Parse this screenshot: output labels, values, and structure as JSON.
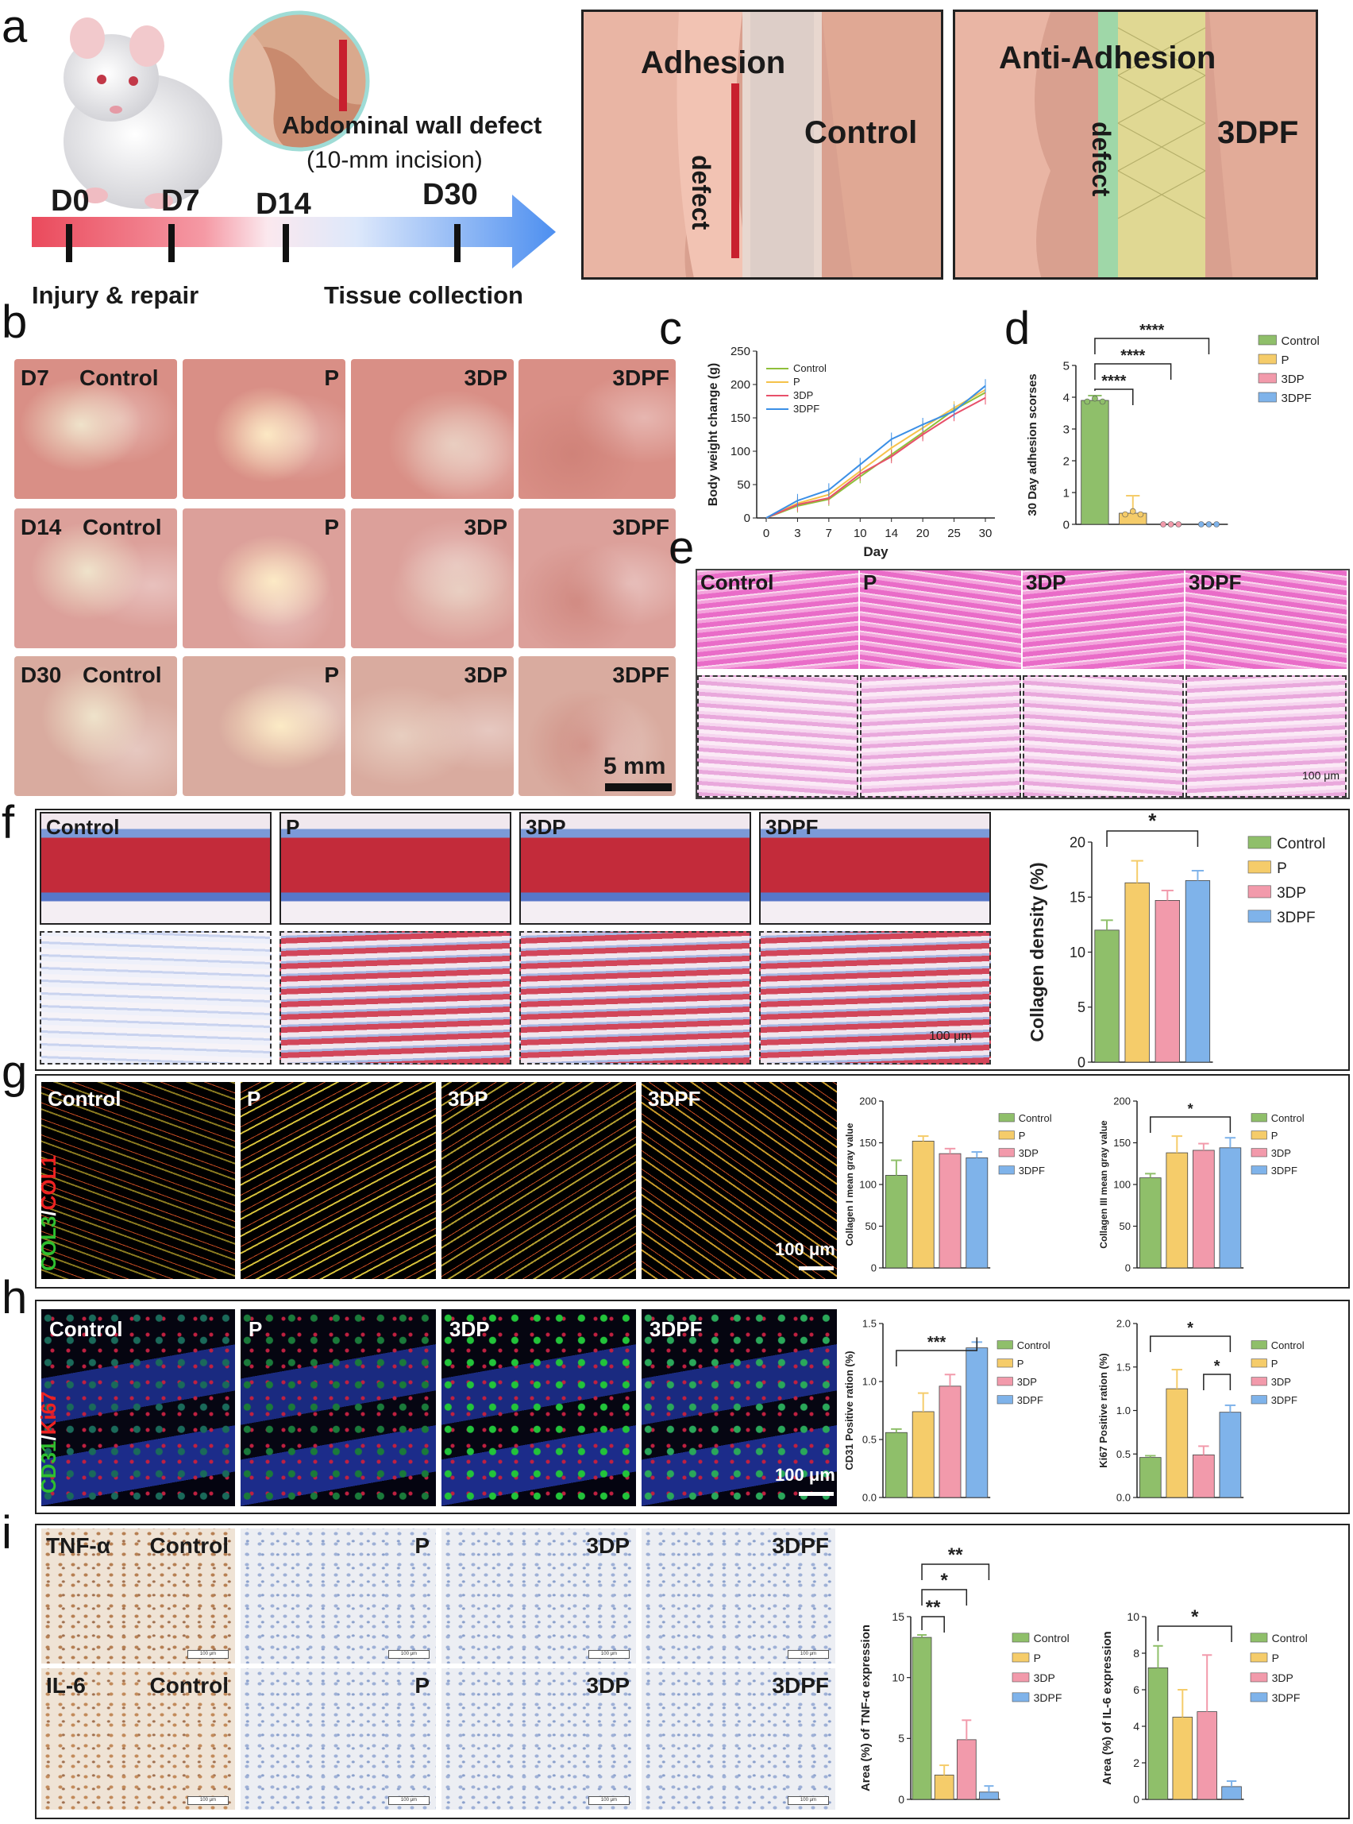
{
  "panels": {
    "a": {
      "label": "a",
      "callout": "Abdominal wall defect",
      "callout_sub": "(10-mm incision)",
      "days": [
        "D0",
        "D7",
        "D14",
        "D30"
      ],
      "left_caption": "Injury & repair",
      "right_caption": "Tissue collection",
      "control_box": {
        "title": "Adhesion",
        "group": "Control",
        "defect": "defect"
      },
      "treat_box": {
        "title": "Anti-Adhesion",
        "group": "3DPF",
        "defect": "defect"
      }
    },
    "b": {
      "label": "b",
      "rows": [
        {
          "day": "D7",
          "groups": [
            "Control",
            "P",
            "3DP",
            "3DPF"
          ]
        },
        {
          "day": "D14",
          "groups": [
            "Control",
            "P",
            "3DP",
            "3DPF"
          ]
        },
        {
          "day": "D30",
          "groups": [
            "Control",
            "P",
            "3DP",
            "3DPF"
          ]
        }
      ],
      "scalebar": "5 mm"
    },
    "c": {
      "label": "c"
    },
    "d": {
      "label": "d"
    },
    "e": {
      "label": "e",
      "groups": [
        "Control",
        "P",
        "3DP",
        "3DPF"
      ],
      "scalebar": "100 μm"
    },
    "f": {
      "label": "f",
      "groups": [
        "Control",
        "P",
        "3DP",
        "3DPF"
      ],
      "scalebar": "100 μm"
    },
    "g": {
      "label": "g",
      "groups": [
        "Control",
        "P",
        "3DP",
        "3DPF"
      ],
      "stain_a": "COL3",
      "stain_sep": "/",
      "stain_b": "COL1",
      "scalebar": "100 μm"
    },
    "h": {
      "label": "h",
      "groups": [
        "Control",
        "P",
        "3DP",
        "3DPF"
      ],
      "stain_a": "CD31",
      "stain_sep": "/",
      "stain_b": "Ki67",
      "scalebar": "100 μm"
    },
    "i": {
      "label": "i",
      "markers": [
        "TNF-α",
        "IL-6"
      ],
      "groups": [
        "Control",
        "P",
        "3DP",
        "3DPF"
      ],
      "scalebar": "100 μm"
    }
  },
  "colors": {
    "control": "#8fbf6a",
    "p": "#f5cc6a",
    "tdp": "#f29aab",
    "tdpf": "#7fb3ea"
  },
  "chart_data": [
    {
      "id": "c",
      "type": "line",
      "xlabel": "Day",
      "ylabel": "Body weight change (g)",
      "x": [
        0,
        3,
        7,
        10,
        14,
        20,
        25,
        30
      ],
      "ylim": [
        0,
        250
      ],
      "yticks": [
        0,
        50,
        100,
        150,
        200,
        250
      ],
      "series": [
        {
          "name": "Control",
          "values": [
            0,
            18,
            28,
            62,
            95,
            128,
            162,
            188
          ]
        },
        {
          "name": "P",
          "values": [
            0,
            22,
            35,
            70,
            105,
            135,
            165,
            192
          ]
        },
        {
          "name": "3DP",
          "values": [
            0,
            20,
            30,
            66,
            92,
            125,
            155,
            180
          ]
        },
        {
          "name": "3DPF",
          "values": [
            0,
            26,
            42,
            80,
            118,
            140,
            160,
            198
          ]
        }
      ],
      "legend": [
        "Control",
        "P",
        "3DP",
        "3DPF"
      ]
    },
    {
      "id": "d",
      "type": "bar",
      "ylabel": "30 Day adhesion scorses",
      "categories": [
        "Control",
        "P",
        "3DP",
        "3DPF"
      ],
      "values": [
        3.9,
        0.35,
        0,
        0
      ],
      "errors": [
        0.15,
        0.55,
        0,
        0
      ],
      "ylim": [
        0,
        5
      ],
      "yticks": [
        0,
        1,
        2,
        3,
        4,
        5
      ],
      "sig": [
        {
          "from": 0,
          "to": 1,
          "text": "****"
        },
        {
          "from": 0,
          "to": 2,
          "text": "****"
        },
        {
          "from": 0,
          "to": 3,
          "text": "****"
        }
      ],
      "legend": [
        "Control",
        "P",
        "3DP",
        "3DPF"
      ]
    },
    {
      "id": "f",
      "type": "bar",
      "ylabel": "Collagen density (%)",
      "categories": [
        "Control",
        "P",
        "3DP",
        "3DPF"
      ],
      "values": [
        12,
        16.3,
        14.7,
        16.5
      ],
      "errors": [
        0.9,
        2.0,
        0.9,
        0.9
      ],
      "ylim": [
        0,
        20
      ],
      "yticks": [
        0,
        5,
        10,
        15,
        20
      ],
      "sig": [
        {
          "from": 0,
          "to": 3,
          "text": "*"
        }
      ],
      "legend": [
        "Control",
        "P",
        "3DP",
        "3DPF"
      ]
    },
    {
      "id": "g1",
      "type": "bar",
      "ylabel": "Collagen I mean gray value",
      "categories": [
        "Control",
        "P",
        "3DP",
        "3DPF"
      ],
      "values": [
        111,
        152,
        137,
        132
      ],
      "errors": [
        18,
        6,
        6,
        7
      ],
      "ylim": [
        0,
        200
      ],
      "yticks": [
        0,
        50,
        100,
        150,
        200
      ],
      "sig": [],
      "legend": [
        "Control",
        "P",
        "3DP",
        "3DPF"
      ]
    },
    {
      "id": "g2",
      "type": "bar",
      "ylabel": "Collagen III mean gray value",
      "categories": [
        "Control",
        "P",
        "3DP",
        "3DPF"
      ],
      "values": [
        108,
        138,
        141,
        144
      ],
      "errors": [
        5,
        20,
        8,
        12
      ],
      "ylim": [
        0,
        200
      ],
      "yticks": [
        0,
        50,
        100,
        150,
        200
      ],
      "sig": [
        {
          "from": 0,
          "to": 3,
          "text": "*"
        }
      ],
      "legend": [
        "Control",
        "P",
        "3DP",
        "3DPF"
      ]
    },
    {
      "id": "h1",
      "type": "bar",
      "ylabel": "CD31 Positive ration (%)",
      "categories": [
        "Control",
        "P",
        "3DP",
        "3DPF"
      ],
      "values": [
        0.56,
        0.74,
        0.96,
        1.29
      ],
      "errors": [
        0.03,
        0.16,
        0.1,
        0.05
      ],
      "ylim": [
        0,
        1.5
      ],
      "yticks": [
        0.0,
        0.5,
        1.0,
        1.5
      ],
      "sig": [
        {
          "from": 0,
          "to": 3,
          "text": "***"
        }
      ],
      "legend": [
        "Control",
        "P",
        "3DP",
        "3DPF"
      ]
    },
    {
      "id": "h2",
      "type": "bar",
      "ylabel": "Ki67 Positive ration (%)",
      "categories": [
        "Control",
        "P",
        "3DP",
        "3DPF"
      ],
      "values": [
        0.46,
        1.25,
        0.49,
        0.98
      ],
      "errors": [
        0.02,
        0.22,
        0.1,
        0.08
      ],
      "ylim": [
        0,
        2.0
      ],
      "yticks": [
        0.0,
        0.5,
        1.0,
        1.5,
        2.0
      ],
      "sig": [
        {
          "from": 0,
          "to": 3,
          "text": "*"
        },
        {
          "from": 2,
          "to": 3,
          "text": "*"
        }
      ],
      "legend": [
        "Control",
        "P",
        "3DP",
        "3DPF"
      ]
    },
    {
      "id": "i1",
      "type": "bar",
      "ylabel": "Area (%) of TNF-α expression",
      "categories": [
        "Control",
        "P",
        "3DP",
        "3DPF"
      ],
      "values": [
        13.3,
        2.0,
        4.9,
        0.6
      ],
      "errors": [
        0.2,
        0.8,
        1.6,
        0.5
      ],
      "ylim": [
        0,
        15
      ],
      "yticks": [
        0,
        5,
        10,
        15
      ],
      "sig": [
        {
          "from": 0,
          "to": 1,
          "text": "**"
        },
        {
          "from": 0,
          "to": 2,
          "text": "*"
        },
        {
          "from": 0,
          "to": 3,
          "text": "**"
        }
      ],
      "legend": [
        "Control",
        "P",
        "3DP",
        "3DPF"
      ]
    },
    {
      "id": "i2",
      "type": "bar",
      "ylabel": "Area (%) of IL-6 expression",
      "categories": [
        "Control",
        "P",
        "3DP",
        "3DPF"
      ],
      "values": [
        7.2,
        4.5,
        4.8,
        0.7
      ],
      "errors": [
        1.2,
        1.5,
        3.1,
        0.3
      ],
      "ylim": [
        0,
        10
      ],
      "yticks": [
        0,
        2,
        4,
        6,
        8,
        10
      ],
      "sig": [
        {
          "from": 0,
          "to": 3,
          "text": "*"
        }
      ],
      "legend": [
        "Control",
        "P",
        "3DP",
        "3DPF"
      ]
    }
  ]
}
